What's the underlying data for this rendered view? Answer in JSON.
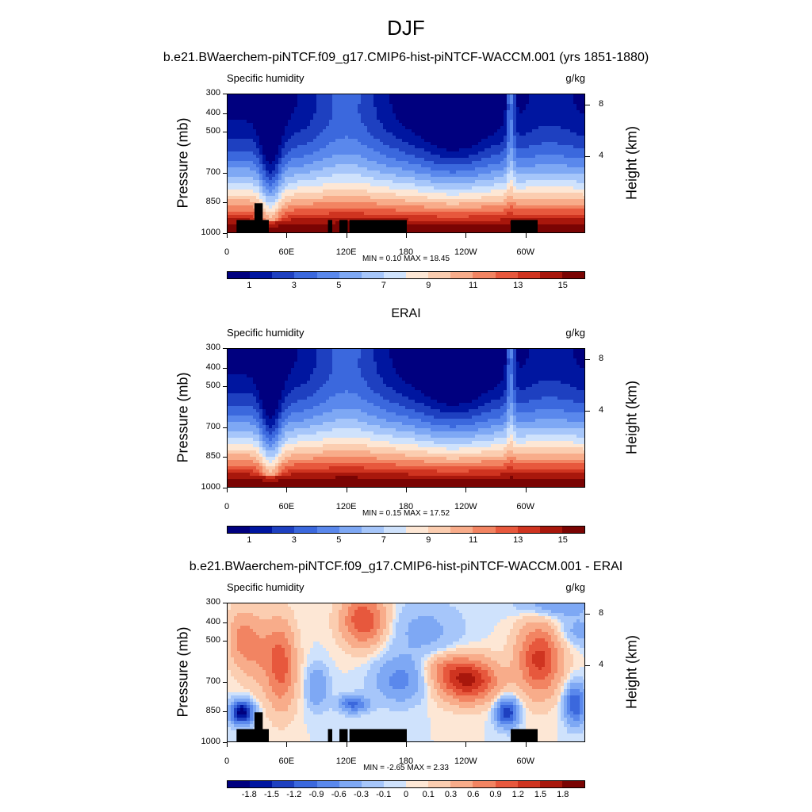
{
  "figure": {
    "main_title": "DJF",
    "colors": {
      "positive_palette": [
        "#00007f",
        "#0016a0",
        "#1e40c0",
        "#3b68dd",
        "#5a88ec",
        "#7ea8f4",
        "#a6c6fa",
        "#cfe2fc",
        "#fde7d5",
        "#fbcdb0",
        "#f8ac8a",
        "#f28462",
        "#e7583d",
        "#cf3420",
        "#a8170c",
        "#7a0403"
      ],
      "diff_palette": [
        "#00007f",
        "#0016a0",
        "#1e40c0",
        "#3b68dd",
        "#5a88ec",
        "#7ea8f4",
        "#a6c6fa",
        "#cfe2fc",
        "#fde7d5",
        "#fbcdb0",
        "#f8ac8a",
        "#f28462",
        "#e7583d",
        "#cf3420",
        "#a8170c",
        "#7a0403"
      ],
      "terrain": "#000000"
    }
  },
  "chart_data": [
    {
      "type": "heatmap",
      "title": "b.e21.BWaerchem-piNTCF.f09_g17.CMIP6-hist-piNTCF-WACCM.001 (yrs 1851-1880)",
      "variable": "Specific humidity",
      "units": "g/kg",
      "ylabel": "Pressure (mb)",
      "ylabel_right": "Height (km)",
      "x_ticks": [
        "0",
        "60E",
        "120E",
        "180",
        "120W",
        "60W"
      ],
      "y_ticks": [
        "300",
        "400",
        "500",
        "700",
        "850",
        "1000"
      ],
      "y_ticks_right": [
        "8",
        "4"
      ],
      "ylim": [
        1000,
        300
      ],
      "min_label": "MIN =   0.10",
      "max_label": "MAX =  18.45",
      "min": 0.1,
      "max": 18.45,
      "colorbar_labels": [
        "1",
        "3",
        "5",
        "7",
        "9",
        "11",
        "13",
        "15"
      ],
      "levels": [
        1,
        2,
        3,
        4,
        5,
        6,
        7,
        8,
        9,
        10,
        11,
        12,
        13,
        14,
        15
      ]
    },
    {
      "type": "heatmap",
      "title": "ERAI",
      "variable": "Specific humidity",
      "units": "g/kg",
      "ylabel": "Pressure (mb)",
      "ylabel_right": "Height (km)",
      "x_ticks": [
        "0",
        "60E",
        "120E",
        "180",
        "120W",
        "60W"
      ],
      "y_ticks": [
        "300",
        "400",
        "500",
        "700",
        "850",
        "1000"
      ],
      "y_ticks_right": [
        "8",
        "4"
      ],
      "ylim": [
        1000,
        300
      ],
      "min_label": "MIN =   0.15",
      "max_label": "MAX =  17.52",
      "min": 0.15,
      "max": 17.52,
      "colorbar_labels": [
        "1",
        "3",
        "5",
        "7",
        "9",
        "11",
        "13",
        "15"
      ],
      "levels": [
        1,
        2,
        3,
        4,
        5,
        6,
        7,
        8,
        9,
        10,
        11,
        12,
        13,
        14,
        15
      ]
    },
    {
      "type": "heatmap",
      "title": "b.e21.BWaerchem-piNTCF.f09_g17.CMIP6-hist-piNTCF-WACCM.001 - ERAI",
      "variable": "Specific humidity",
      "units": "g/kg",
      "ylabel": "Pressure (mb)",
      "ylabel_right": "Height (km)",
      "x_ticks": [
        "0",
        "60E",
        "120E",
        "180",
        "120W",
        "60W"
      ],
      "y_ticks": [
        "300",
        "400",
        "500",
        "700",
        "850",
        "1000"
      ],
      "y_ticks_right": [
        "8",
        "4"
      ],
      "ylim": [
        1000,
        300
      ],
      "min_label": "MIN =  -2.65",
      "max_label": "MAX =   2.33",
      "min": -2.65,
      "max": 2.33,
      "colorbar_labels": [
        "-1.8",
        "-1.5",
        "-1.2",
        "-0.9",
        "-0.6",
        "-0.3",
        "-0.1",
        "0",
        "0.1",
        "0.3",
        "0.6",
        "0.9",
        "1.2",
        "1.5",
        "1.8"
      ],
      "levels": [
        -1.8,
        -1.5,
        -1.2,
        -0.9,
        -0.6,
        -0.3,
        -0.1,
        0,
        0.1,
        0.3,
        0.6,
        0.9,
        1.2,
        1.5,
        1.8
      ]
    }
  ]
}
